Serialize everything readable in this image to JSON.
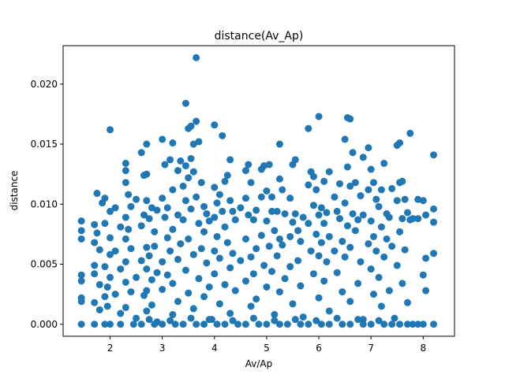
{
  "chart_data": {
    "type": "scatter",
    "title": "distance(Av_Ap)",
    "xlabel": "Av/Ap",
    "ylabel": "distance",
    "xlim": [
      1.1,
      8.6
    ],
    "ylim": [
      -0.001,
      0.0232
    ],
    "xticks": [
      2,
      3,
      4,
      5,
      6,
      7,
      8
    ],
    "yticks": [
      0.0,
      0.005,
      0.01,
      0.015,
      0.02
    ],
    "ytick_labels": [
      "0.000",
      "0.005",
      "0.010",
      "0.015",
      "0.020"
    ],
    "grid": false,
    "marker_color": "#1f77b4",
    "points": [
      [
        1.45,
        0.0
      ],
      [
        1.45,
        0.0086
      ],
      [
        1.45,
        0.0078
      ],
      [
        1.45,
        0.0071
      ],
      [
        1.45,
        0.0041
      ],
      [
        1.45,
        0.0036
      ],
      [
        1.45,
        0.0022
      ],
      [
        1.45,
        0.0019
      ],
      [
        1.7,
        0.0
      ],
      [
        1.7,
        0.0083
      ],
      [
        1.7,
        0.0068
      ],
      [
        1.7,
        0.0049
      ],
      [
        1.7,
        0.0042
      ],
      [
        1.7,
        0.0018
      ],
      [
        1.75,
        0.0109
      ],
      [
        1.75,
        0.0076
      ],
      [
        1.8,
        0.0062
      ],
      [
        1.8,
        0.0033
      ],
      [
        1.8,
        0.0012
      ],
      [
        1.85,
        0.0101
      ],
      [
        1.9,
        0.0105
      ],
      [
        1.9,
        0.0084
      ],
      [
        1.9,
        0.0048
      ],
      [
        1.9,
        0.0023
      ],
      [
        1.95,
        0.0031
      ],
      [
        1.95,
        0.0015
      ],
      [
        2.0,
        0.0162
      ],
      [
        2.0,
        0.0094
      ],
      [
        2.0,
        0.0072
      ],
      [
        2.0,
        0.0058
      ],
      [
        2.0,
        0.0039
      ],
      [
        2.0,
        0.0
      ],
      [
        2.1,
        0.0097
      ],
      [
        2.1,
        0.0061
      ],
      [
        2.1,
        0.0025
      ],
      [
        2.2,
        0.0081
      ],
      [
        2.2,
        0.0046
      ],
      [
        2.2,
        0.0009
      ],
      [
        2.3,
        0.0134
      ],
      [
        2.3,
        0.0128
      ],
      [
        2.3,
        0.0118
      ],
      [
        2.3,
        0.0089
      ],
      [
        2.3,
        0.0071
      ],
      [
        2.3,
        0.0052
      ],
      [
        2.3,
        0.0035
      ],
      [
        2.3,
        0.0014
      ],
      [
        2.35,
        0.0108
      ],
      [
        2.35,
        0.0079
      ],
      [
        2.4,
        0.0098
      ],
      [
        2.4,
        0.0063
      ],
      [
        2.4,
        0.0027
      ],
      [
        2.5,
        0.0104
      ],
      [
        2.5,
        0.0039
      ],
      [
        2.5,
        0.0005
      ],
      [
        2.6,
        0.0143
      ],
      [
        2.6,
        0.0082
      ],
      [
        2.6,
        0.0053
      ],
      [
        2.65,
        0.0124
      ],
      [
        2.65,
        0.0091
      ],
      [
        2.65,
        0.0024
      ],
      [
        2.7,
        0.015
      ],
      [
        2.7,
        0.0125
      ],
      [
        2.7,
        0.0103
      ],
      [
        2.7,
        0.0064
      ],
      [
        2.7,
        0.0046
      ],
      [
        2.7,
        0.0028
      ],
      [
        2.7,
        0.0011
      ],
      [
        2.75,
        0.0088
      ],
      [
        2.75,
        0.0057
      ],
      [
        2.8,
        0.0097
      ],
      [
        2.8,
        0.0037
      ],
      [
        2.8,
        0.0016
      ],
      [
        2.85,
        0.0077
      ],
      [
        2.85,
        0.0065
      ],
      [
        2.9,
        0.0095
      ],
      [
        2.9,
        0.0043
      ],
      [
        2.9,
        0.0002
      ],
      [
        3.0,
        0.0154
      ],
      [
        3.0,
        0.0105
      ],
      [
        3.0,
        0.0052
      ],
      [
        3.0,
        0.0029
      ],
      [
        3.05,
        0.0133
      ],
      [
        3.05,
        0.0089
      ],
      [
        3.1,
        0.0097
      ],
      [
        3.1,
        0.0072
      ],
      [
        3.1,
        0.0041
      ],
      [
        3.15,
        0.0137
      ],
      [
        3.15,
        0.0061
      ],
      [
        3.2,
        0.0151
      ],
      [
        3.2,
        0.0112
      ],
      [
        3.2,
        0.0079
      ],
      [
        3.2,
        0.0034
      ],
      [
        3.2,
        0.0008
      ],
      [
        3.3,
        0.0128
      ],
      [
        3.3,
        0.0091
      ],
      [
        3.3,
        0.0054
      ],
      [
        3.3,
        0.0019
      ],
      [
        3.35,
        0.0136
      ],
      [
        3.35,
        0.0067
      ],
      [
        3.4,
        0.0115
      ],
      [
        3.4,
        0.0087
      ],
      [
        3.45,
        0.0184
      ],
      [
        3.45,
        0.0132
      ],
      [
        3.45,
        0.0103
      ],
      [
        3.45,
        0.0045
      ],
      [
        3.5,
        0.0163
      ],
      [
        3.5,
        0.0122
      ],
      [
        3.5,
        0.0071
      ],
      [
        3.5,
        0.0026
      ],
      [
        3.55,
        0.0165
      ],
      [
        3.55,
        0.0138
      ],
      [
        3.55,
        0.0096
      ],
      [
        3.6,
        0.015
      ],
      [
        3.6,
        0.0127
      ],
      [
        3.6,
        0.0058
      ],
      [
        3.6,
        0.0013
      ],
      [
        3.65,
        0.0222
      ],
      [
        3.65,
        0.0169
      ],
      [
        3.65,
        0.0106
      ],
      [
        3.7,
        0.0152
      ],
      [
        3.7,
        0.0084
      ],
      [
        3.7,
        0.0038
      ],
      [
        3.75,
        0.0118
      ],
      [
        3.75,
        0.0063
      ],
      [
        3.8,
        0.0098
      ],
      [
        3.8,
        0.0077
      ],
      [
        3.8,
        0.0023
      ],
      [
        3.85,
        0.0092
      ],
      [
        3.85,
        0.0051
      ],
      [
        3.9,
        0.0086
      ],
      [
        3.9,
        0.0031
      ],
      [
        3.9,
        0.0004
      ],
      [
        4.0,
        0.0166
      ],
      [
        4.0,
        0.0114
      ],
      [
        4.0,
        0.0089
      ],
      [
        4.0,
        0.0061
      ],
      [
        4.0,
        0.0042
      ],
      [
        4.05,
        0.0101
      ],
      [
        4.05,
        0.0073
      ],
      [
        4.1,
        0.0108
      ],
      [
        4.1,
        0.0055
      ],
      [
        4.1,
        0.0017
      ],
      [
        4.15,
        0.0157
      ],
      [
        4.15,
        0.0094
      ],
      [
        4.2,
        0.0119
      ],
      [
        4.2,
        0.0081
      ],
      [
        4.2,
        0.0033
      ],
      [
        4.25,
        0.0124
      ],
      [
        4.25,
        0.0068
      ],
      [
        4.3,
        0.0137
      ],
      [
        4.3,
        0.0103
      ],
      [
        4.3,
        0.0047
      ],
      [
        4.3,
        0.0009
      ],
      [
        4.35,
        0.0094
      ],
      [
        4.35,
        0.0059
      ],
      [
        4.4,
        0.0087
      ],
      [
        4.4,
        0.0028
      ],
      [
        4.5,
        0.0097
      ],
      [
        4.5,
        0.0053
      ],
      [
        4.6,
        0.0128
      ],
      [
        4.6,
        0.0105
      ],
      [
        4.6,
        0.0071
      ],
      [
        4.6,
        0.0036
      ],
      [
        4.65,
        0.0133
      ],
      [
        4.65,
        0.0091
      ],
      [
        4.7,
        0.0118
      ],
      [
        4.7,
        0.0056
      ],
      [
        4.7,
        0.0015
      ],
      [
        4.75,
        0.0087
      ],
      [
        4.75,
        0.0042
      ],
      [
        4.8,
        0.0095
      ],
      [
        4.8,
        0.0063
      ],
      [
        4.8,
        0.0021
      ],
      [
        4.9,
        0.0129
      ],
      [
        4.9,
        0.0106
      ],
      [
        4.9,
        0.0074
      ],
      [
        4.95,
        0.0132
      ],
      [
        4.95,
        0.0049
      ],
      [
        5.0,
        0.0111
      ],
      [
        5.0,
        0.0086
      ],
      [
        5.0,
        0.0031
      ],
      [
        5.05,
        0.0133
      ],
      [
        5.05,
        0.0065
      ],
      [
        5.1,
        0.0106
      ],
      [
        5.1,
        0.0094
      ],
      [
        5.1,
        0.0044
      ],
      [
        5.15,
        0.0078
      ],
      [
        5.15,
        0.0008
      ],
      [
        5.2,
        0.0094
      ],
      [
        5.2,
        0.0057
      ],
      [
        5.25,
        0.015
      ],
      [
        5.25,
        0.0121
      ],
      [
        5.25,
        0.0071
      ],
      [
        5.25,
        0.0027
      ],
      [
        5.3,
        0.0112
      ],
      [
        5.3,
        0.0066
      ],
      [
        5.35,
        0.0092
      ],
      [
        5.35,
        0.0038
      ],
      [
        5.45,
        0.0105
      ],
      [
        5.45,
        0.0073
      ],
      [
        5.45,
        0.0048
      ],
      [
        5.5,
        0.0133
      ],
      [
        5.5,
        0.0085
      ],
      [
        5.5,
        0.0017
      ],
      [
        5.55,
        0.0137
      ],
      [
        5.55,
        0.0092
      ],
      [
        5.6,
        0.0078
      ],
      [
        5.6,
        0.0053
      ],
      [
        5.65,
        0.0069
      ],
      [
        5.65,
        0.0032
      ],
      [
        5.7,
        0.0089
      ],
      [
        5.7,
        0.0006
      ],
      [
        5.8,
        0.0163
      ],
      [
        5.8,
        0.0116
      ],
      [
        5.8,
        0.0084
      ],
      [
        5.85,
        0.0127
      ],
      [
        5.85,
        0.0061
      ],
      [
        5.9,
        0.0123
      ],
      [
        5.9,
        0.0099
      ],
      [
        5.9,
        0.0042
      ],
      [
        5.95,
        0.0112
      ],
      [
        5.95,
        0.0075
      ],
      [
        6.0,
        0.0173
      ],
      [
        6.0,
        0.0091
      ],
      [
        6.0,
        0.0057
      ],
      [
        6.0,
        0.0022
      ],
      [
        6.05,
        0.0097
      ],
      [
        6.05,
        0.0068
      ],
      [
        6.1,
        0.0119
      ],
      [
        6.1,
        0.0084
      ],
      [
        6.1,
        0.0036
      ],
      [
        6.15,
        0.0093
      ],
      [
        6.15,
        0.0052
      ],
      [
        6.2,
        0.0127
      ],
      [
        6.2,
        0.0073
      ],
      [
        6.2,
        0.0011
      ],
      [
        6.3,
        0.0106
      ],
      [
        6.3,
        0.0061
      ],
      [
        6.35,
        0.0094
      ],
      [
        6.35,
        0.0043
      ],
      [
        6.4,
        0.0117
      ],
      [
        6.4,
        0.0088
      ],
      [
        6.45,
        0.0069
      ],
      [
        6.45,
        0.0027
      ],
      [
        6.5,
        0.0154
      ],
      [
        6.5,
        0.0101
      ],
      [
        6.5,
        0.0056
      ],
      [
        6.55,
        0.0172
      ],
      [
        6.55,
        0.0131
      ],
      [
        6.55,
        0.0082
      ],
      [
        6.6,
        0.0171
      ],
      [
        6.6,
        0.0115
      ],
      [
        6.6,
        0.0064
      ],
      [
        6.6,
        0.0019
      ],
      [
        6.65,
        0.0143
      ],
      [
        6.65,
        0.0092
      ],
      [
        6.7,
        0.0118
      ],
      [
        6.7,
        0.0078
      ],
      [
        6.75,
        0.0087
      ],
      [
        6.75,
        0.0034
      ],
      [
        6.8,
        0.0107
      ],
      [
        6.8,
        0.0052
      ],
      [
        6.85,
        0.0139
      ],
      [
        6.85,
        0.0091
      ],
      [
        6.85,
        0.0004
      ],
      [
        6.95,
        0.0147
      ],
      [
        6.95,
        0.0112
      ],
      [
        6.95,
        0.0067
      ],
      [
        7.0,
        0.0129
      ],
      [
        7.0,
        0.0086
      ],
      [
        7.0,
        0.0046
      ],
      [
        7.05,
        0.0118
      ],
      [
        7.05,
        0.0073
      ],
      [
        7.05,
        0.0025
      ],
      [
        7.1,
        0.0104
      ],
      [
        7.1,
        0.0061
      ],
      [
        7.15,
        0.0098
      ],
      [
        7.15,
        0.0039
      ],
      [
        7.2,
        0.0112
      ],
      [
        7.2,
        0.0081
      ],
      [
        7.2,
        0.0015
      ],
      [
        7.25,
        0.0134
      ],
      [
        7.25,
        0.0056
      ],
      [
        7.3,
        0.0092
      ],
      [
        7.3,
        0.0071
      ],
      [
        7.35,
        0.0089
      ],
      [
        7.35,
        0.0028
      ],
      [
        7.4,
        0.0113
      ],
      [
        7.4,
        0.0065
      ],
      [
        7.5,
        0.0149
      ],
      [
        7.5,
        0.0103
      ],
      [
        7.5,
        0.0049
      ],
      [
        7.55,
        0.0151
      ],
      [
        7.55,
        0.0118
      ],
      [
        7.55,
        0.0077
      ],
      [
        7.6,
        0.0119
      ],
      [
        7.6,
        0.0088
      ],
      [
        7.6,
        0.0034
      ],
      [
        7.65,
        0.0104
      ],
      [
        7.65,
        0.0062
      ],
      [
        7.7,
        0.0093
      ],
      [
        7.7,
        0.0018
      ],
      [
        7.75,
        0.0159
      ],
      [
        7.75,
        0.0087
      ],
      [
        7.8,
        0.0088
      ],
      [
        7.8,
        0.0
      ],
      [
        7.9,
        0.0104
      ],
      [
        7.9,
        0.0088
      ],
      [
        7.9,
        0.0
      ],
      [
        8.0,
        0.0103
      ],
      [
        8.0,
        0.0041
      ],
      [
        8.05,
        0.0091
      ],
      [
        8.05,
        0.0055
      ],
      [
        8.05,
        0.0028
      ],
      [
        8.2,
        0.0141
      ],
      [
        8.2,
        0.0096
      ],
      [
        8.2,
        0.0085
      ],
      [
        8.2,
        0.0059
      ],
      [
        8.2,
        0.0
      ],
      [
        1.9,
        0.0
      ],
      [
        2.2,
        0.0
      ],
      [
        2.6,
        0.0
      ],
      [
        3.0,
        0.0
      ],
      [
        3.4,
        0.0
      ],
      [
        3.8,
        0.0
      ],
      [
        4.2,
        0.0
      ],
      [
        4.6,
        0.0
      ],
      [
        5.0,
        0.0
      ],
      [
        5.4,
        0.0
      ],
      [
        5.8,
        0.0
      ],
      [
        6.2,
        0.0
      ],
      [
        6.6,
        0.0
      ],
      [
        7.0,
        0.0
      ],
      [
        7.4,
        0.0
      ],
      [
        7.7,
        0.0
      ],
      [
        8.0,
        0.0
      ],
      [
        2.45,
        0.0
      ],
      [
        2.85,
        0.0
      ],
      [
        3.25,
        0.0
      ],
      [
        3.65,
        0.0
      ],
      [
        4.05,
        0.0
      ],
      [
        4.45,
        0.0
      ],
      [
        4.85,
        0.0
      ],
      [
        5.25,
        0.0
      ],
      [
        5.65,
        0.0
      ],
      [
        6.05,
        0.0
      ],
      [
        6.45,
        0.0
      ],
      [
        6.85,
        0.0
      ],
      [
        7.25,
        0.0
      ],
      [
        7.55,
        0.0
      ],
      [
        2.75,
        0.0004
      ],
      [
        3.15,
        0.0003
      ],
      [
        3.55,
        0.0005
      ],
      [
        3.95,
        0.0004
      ],
      [
        4.35,
        0.0003
      ],
      [
        4.75,
        0.0005
      ],
      [
        5.15,
        0.0003
      ],
      [
        5.55,
        0.0004
      ],
      [
        5.95,
        0.0003
      ],
      [
        6.35,
        0.0005
      ],
      [
        6.75,
        0.0004
      ],
      [
        7.15,
        0.0003
      ],
      [
        7.45,
        0.0005
      ]
    ]
  }
}
